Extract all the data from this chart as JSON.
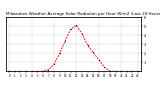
{
  "title": "Milwaukee Weather Average Solar Radiation per Hour W/m2 (Last 24 Hours)",
  "hours": [
    0,
    1,
    2,
    3,
    4,
    5,
    6,
    7,
    8,
    9,
    10,
    11,
    12,
    13,
    14,
    15,
    16,
    17,
    18,
    19,
    20,
    21,
    22,
    23
  ],
  "values": [
    0,
    0,
    0,
    0,
    0,
    0,
    2,
    18,
    80,
    200,
    340,
    470,
    510,
    420,
    290,
    210,
    130,
    45,
    3,
    0,
    0,
    0,
    0,
    0
  ],
  "line_color": "#ff0000",
  "bg_color": "#ffffff",
  "grid_color": "#888888",
  "ylim": [
    0,
    600
  ],
  "yticks": [
    100,
    200,
    300,
    400,
    500,
    600
  ],
  "ytick_labels": [
    "1",
    "2",
    "3",
    "4",
    "5",
    "6"
  ],
  "title_fontsize": 3.0
}
